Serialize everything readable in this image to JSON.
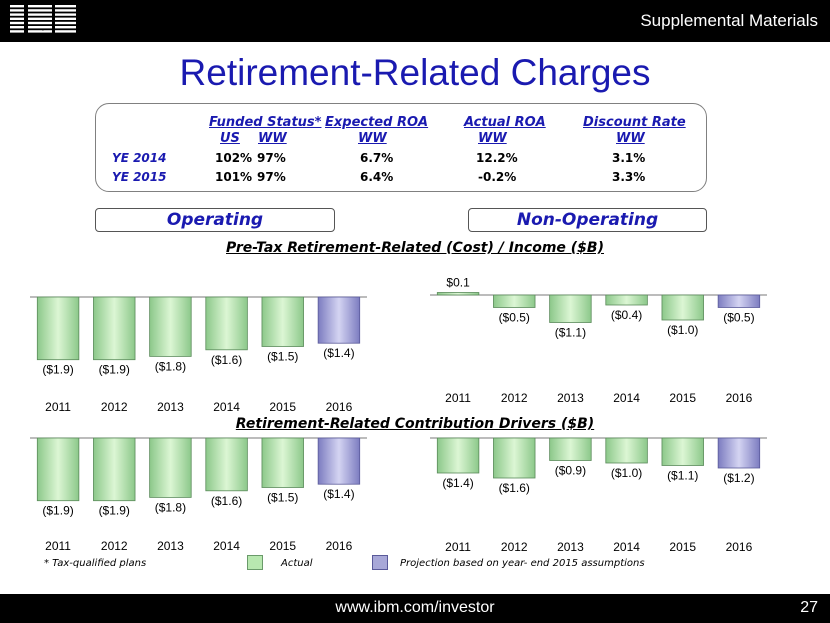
{
  "header": {
    "logo_text": "IBM",
    "section_label": "Supplemental Materials"
  },
  "title": "Retirement-Related Charges",
  "assumptions_table": {
    "headers": {
      "funded_status": "Funded Status*",
      "expected_roa": "Expected ROA",
      "actual_roa": "Actual ROA",
      "discount_rate": "Discount Rate"
    },
    "subheaders": {
      "us": "US",
      "ww1": "WW",
      "ww2": "WW",
      "ww3": "WW",
      "ww4": "WW"
    },
    "rows": [
      {
        "label": "YE 2014",
        "us": "102%",
        "ww": "97%",
        "expected": "6.7%",
        "actual": "12.2%",
        "discount": "3.1%"
      },
      {
        "label": "YE 2015",
        "us": "101%",
        "ww": "97%",
        "expected": "6.4%",
        "actual": "-0.2%",
        "discount": "3.3%"
      }
    ]
  },
  "labels": {
    "operating": "Operating",
    "non_operating": "Non-Operating",
    "chart1_title": "Pre-Tax Retirement-Related (Cost) / Income ($B)",
    "chart2_title": "Retirement-Related Contribution Drivers ($B)"
  },
  "legend": {
    "footnote": "* Tax-qualified plans",
    "actual": "Actual",
    "projection": "Projection based on year- end  2015 assumptions",
    "actual_color": "#b8e8b0",
    "projection_color": "#a8a8d8"
  },
  "footer": {
    "url": "www.ibm.com/investor",
    "page_number": "27"
  },
  "chart_data": [
    {
      "id": "pretax_operating",
      "type": "bar",
      "title": "Pre-Tax Retirement-Related (Cost) / Income ($B)",
      "categories": [
        "2011",
        "2012",
        "2013",
        "2014",
        "2015",
        "2016"
      ],
      "values": [
        -1.9,
        -1.9,
        -1.8,
        -1.6,
        -1.5,
        -1.4
      ],
      "labels": [
        "($1.9)",
        "($1.9)",
        "($1.8)",
        "($1.6)",
        "($1.5)",
        "($1.4)"
      ],
      "projection": [
        false,
        false,
        false,
        false,
        false,
        true
      ]
    },
    {
      "id": "pretax_non_operating",
      "type": "bar",
      "title": "Pre-Tax Retirement-Related (Cost) / Income ($B)",
      "categories": [
        "2011",
        "2012",
        "2013",
        "2014",
        "2015",
        "2016"
      ],
      "values": [
        0.1,
        -0.5,
        -1.1,
        -0.4,
        -1.0,
        -0.5
      ],
      "labels": [
        "$0.1",
        "($0.5)",
        "($1.1)",
        "($0.4)",
        "($1.0)",
        "($0.5)"
      ],
      "projection": [
        false,
        false,
        false,
        false,
        false,
        true
      ]
    },
    {
      "id": "drivers_operating",
      "type": "bar",
      "title": "Retirement-Related Contribution Drivers ($B)",
      "categories": [
        "2011",
        "2012",
        "2013",
        "2014",
        "2015",
        "2016"
      ],
      "values": [
        -1.9,
        -1.9,
        -1.8,
        -1.6,
        -1.5,
        -1.4
      ],
      "labels": [
        "($1.9)",
        "($1.9)",
        "($1.8)",
        "($1.6)",
        "($1.5)",
        "($1.4)"
      ],
      "projection": [
        false,
        false,
        false,
        false,
        false,
        true
      ]
    },
    {
      "id": "drivers_non_operating",
      "type": "bar",
      "title": "Retirement-Related Contribution Drivers ($B)",
      "categories": [
        "2011",
        "2012",
        "2013",
        "2014",
        "2015",
        "2016"
      ],
      "values": [
        -1.4,
        -1.6,
        -0.9,
        -1.0,
        -1.1,
        -1.2
      ],
      "labels": [
        "($1.4)",
        "($1.6)",
        "($0.9)",
        "($1.0)",
        "($1.1)",
        "($1.2)"
      ],
      "projection": [
        false,
        false,
        false,
        false,
        false,
        true
      ]
    }
  ]
}
